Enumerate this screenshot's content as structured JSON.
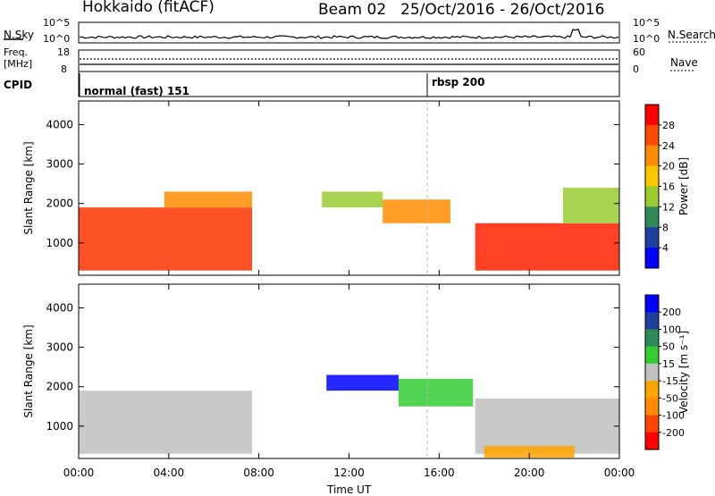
{
  "header": {
    "station": "Hokkaido (fitACF)",
    "beam": "Beam 02",
    "dates": "25/Oct/2016 - 26/Oct/2016"
  },
  "top_panels": {
    "nsky_label": "N.Sky",
    "nsearch_label": "N.Search",
    "nsky_ticks": [
      "10^5",
      "10^0"
    ],
    "nsearch_ticks": [
      "10^5",
      "10^0"
    ],
    "freq_label": "Freq.",
    "freq_unit": "[MHz]",
    "freq_ticks": [
      "18",
      "8"
    ],
    "nave_label": "Nave",
    "nave_ticks": [
      "60",
      "0"
    ],
    "cpid_label": "CPID",
    "cpid_modes": [
      {
        "label": "normal (fast) 151",
        "start_hour": 0
      },
      {
        "label": "rbsp 200",
        "start_hour": 15.5
      }
    ]
  },
  "chart_data": [
    {
      "type": "heatmap",
      "name": "power",
      "ylabel": "Slant Range [km]",
      "yticks": [
        1000,
        2000,
        3000,
        4000
      ],
      "ylim": [
        180,
        4600
      ],
      "colorbar_label": "Power [dB]",
      "colorbar_ticks": [
        28,
        24,
        20,
        16,
        12,
        8,
        4
      ],
      "colorbar_colors": [
        "#ff0000",
        "#ff4a00",
        "#ff8c00",
        "#ffc300",
        "#9acd32",
        "#2e8b57",
        "#1f3f9f",
        "#0000ff"
      ],
      "regions": [
        {
          "t0": 0.0,
          "t1": 7.7,
          "r0": 300,
          "r1": 1900,
          "fill": "#ff3300"
        },
        {
          "t0": 3.8,
          "t1": 7.7,
          "r0": 1900,
          "r1": 2300,
          "fill": "#ff8c00"
        },
        {
          "t0": 10.8,
          "t1": 13.5,
          "r0": 1900,
          "r1": 2300,
          "fill": "#9acd32"
        },
        {
          "t0": 13.5,
          "t1": 16.5,
          "r0": 1500,
          "r1": 2100,
          "fill": "#ff8c00"
        },
        {
          "t0": 17.6,
          "t1": 24.0,
          "r0": 300,
          "r1": 1500,
          "fill": "#ff2000"
        },
        {
          "t0": 21.5,
          "t1": 24.0,
          "r0": 1500,
          "r1": 2400,
          "fill": "#9acd32"
        }
      ]
    },
    {
      "type": "heatmap",
      "name": "velocity",
      "xlabel": "Time UT",
      "ylabel": "Slant Range [km]",
      "yticks": [
        1000,
        2000,
        3000,
        4000
      ],
      "ylim": [
        180,
        4600
      ],
      "xlim": [
        0,
        24
      ],
      "xticks": [
        "00:00",
        "04:00",
        "08:00",
        "12:00",
        "16:00",
        "20:00",
        "00:00"
      ],
      "colorbar_label": "Velocity [m s⁻¹]",
      "colorbar_ticks": [
        200,
        100,
        50,
        15,
        -15,
        -50,
        -100,
        -200
      ],
      "colorbar_colors": [
        "#0000ff",
        "#1f3f9f",
        "#2e8b57",
        "#32cd32",
        "#c0c0c0",
        "#ffa500",
        "#ff8c00",
        "#ff4500",
        "#ff0000"
      ],
      "regions": [
        {
          "t0": 0.0,
          "t1": 7.7,
          "r0": 300,
          "r1": 1900,
          "fill": "#c0c0c0"
        },
        {
          "t0": 11.0,
          "t1": 14.2,
          "r0": 1900,
          "r1": 2300,
          "fill": "#0000ff"
        },
        {
          "t0": 14.2,
          "t1": 17.5,
          "r0": 1500,
          "r1": 2200,
          "fill": "#32cd32"
        },
        {
          "t0": 17.6,
          "t1": 24.0,
          "r0": 300,
          "r1": 1700,
          "fill": "#c0c0c0"
        },
        {
          "t0": 18.0,
          "t1": 22.0,
          "r0": 200,
          "r1": 500,
          "fill": "#ffa500"
        }
      ]
    }
  ]
}
